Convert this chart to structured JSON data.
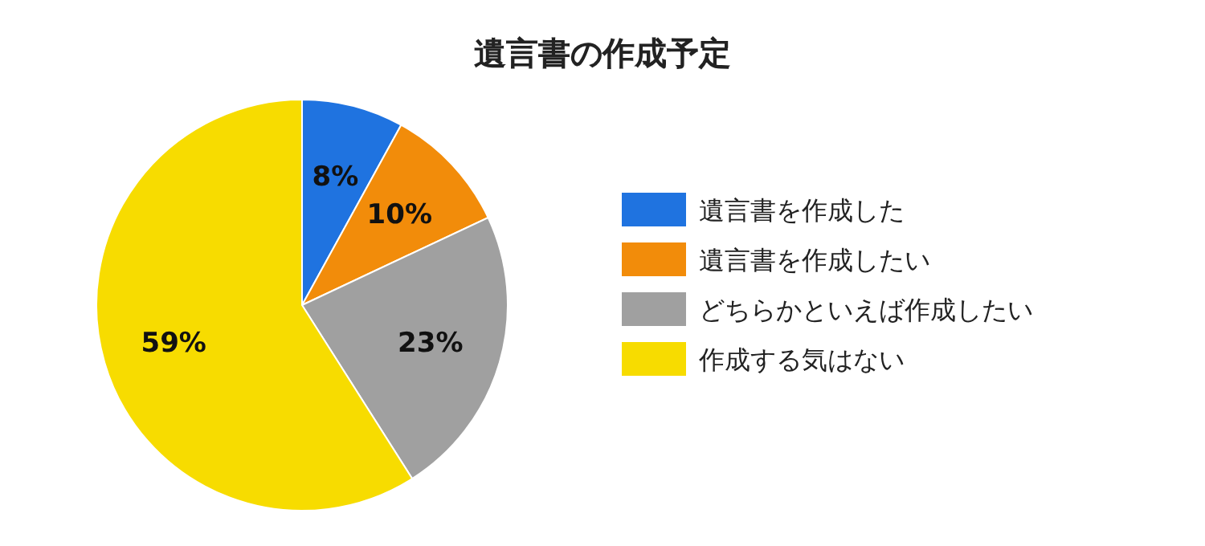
{
  "chart_data": {
    "type": "pie",
    "title": "遺言書の作成予定",
    "categories": [
      "遺言書を作成した",
      "遺言書を作成したい",
      "どちらかといえば作成したい",
      "作成する気はない"
    ],
    "values": [
      8,
      10,
      23,
      59
    ],
    "value_labels": [
      "8%",
      "10%",
      "23%",
      "59%"
    ],
    "colors": [
      "#1f73e0",
      "#f28c0a",
      "#a0a0a0",
      "#f7dc00"
    ],
    "legend": "right"
  }
}
